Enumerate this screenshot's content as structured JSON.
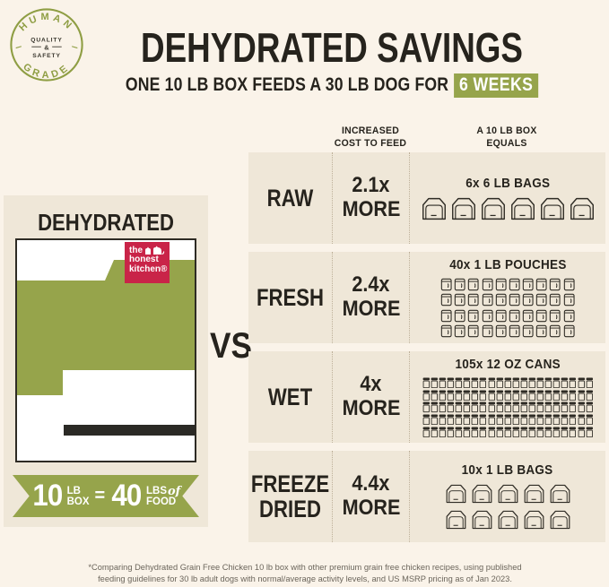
{
  "badge": {
    "arc_top": "HUMAN",
    "arc_bottom": "GRADE",
    "center_line1": "QUALITY",
    "center_amp": "&",
    "center_line2": "SAFETY"
  },
  "header": {
    "title": "DEHYDRATED SAVINGS",
    "subtitle_prefix": "ONE 10 LB BOX FEEDS A 30 LB DOG FOR",
    "subtitle_highlight": "6 WEEKS"
  },
  "left_panel": {
    "heading": "DEHYDRATED",
    "logo": {
      "line1": "the",
      "line2": "honest",
      "line3": "kitchen®"
    },
    "ribbon": {
      "num1": "10",
      "unit1_top": "LB",
      "unit1_bottom": "BOX",
      "equals": "=",
      "num2": "40",
      "unit2_top": "LBS",
      "unit2_of": "of",
      "unit2_bottom": "FOOD"
    }
  },
  "vs_label": "VS",
  "table": {
    "col_header_1": "INCREASED\nCOST TO FEED",
    "col_header_2": "A 10 LB BOX\nEQUALS",
    "rows": [
      {
        "label": "RAW",
        "cost_value": "2.1x",
        "cost_suffix": "MORE",
        "icon_caption": "6x 6 LB BAGS",
        "icon_type": "bag-large",
        "icon_count": 6,
        "icons_per_row": 6
      },
      {
        "label": "FRESH",
        "cost_value": "2.4x",
        "cost_suffix": "MORE",
        "icon_caption": "40x 1 LB POUCHES",
        "icon_type": "pouch",
        "icon_count": 40,
        "icons_per_row": 10
      },
      {
        "label": "WET",
        "cost_value": "4x",
        "cost_suffix": "MORE",
        "icon_caption": "105x 12 OZ CANS",
        "icon_type": "can",
        "icon_count": 105,
        "icons_per_row": 21
      },
      {
        "label": "FREEZE\nDRIED",
        "cost_value": "4.4x",
        "cost_suffix": "MORE",
        "icon_caption": "10x 1 LB BAGS",
        "icon_type": "bag-medium",
        "icon_count": 10,
        "icons_per_row": 5
      }
    ]
  },
  "footnote": "*Comparing Dehydrated Grain Free Chicken 10 lb box with other premium grain free chicken recipes, using published\nfeeding guidelines for 30 lb adult dogs with normal/average activity levels, and US MSRP pricing as of Jan 2023.",
  "colors": {
    "page_bg": "#FAF3E9",
    "panel_bg": "#EFE7D8",
    "olive_green": "#96A44B",
    "brand_red": "#C92448",
    "text_dark": "#26231D"
  }
}
